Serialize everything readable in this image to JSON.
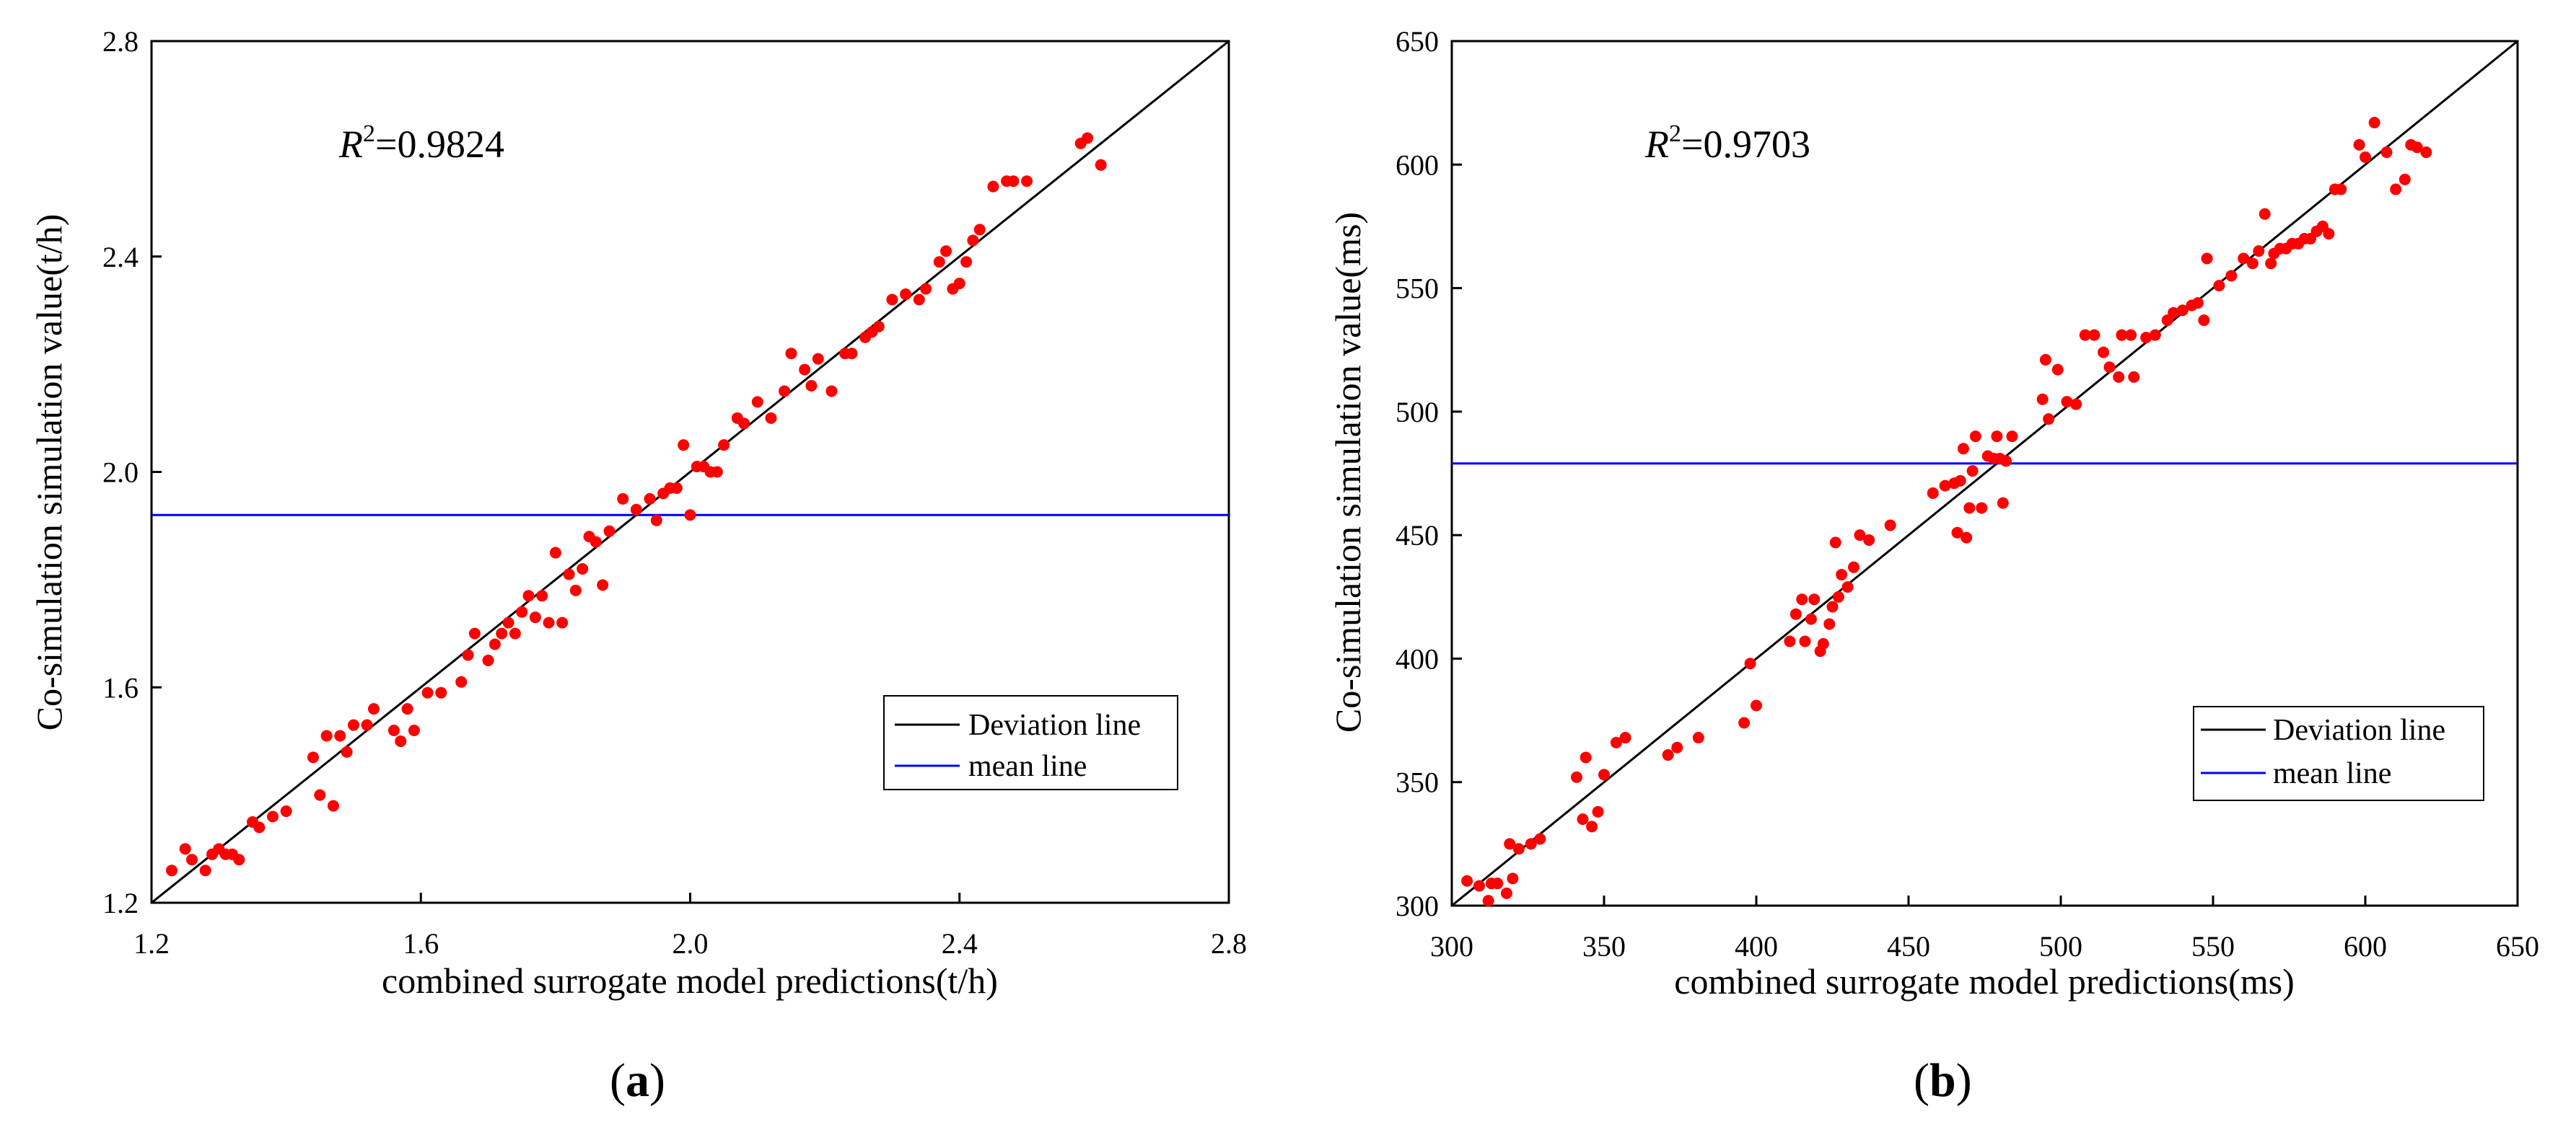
{
  "chart_data": [
    {
      "type": "scatter",
      "panel_label": "a",
      "xlabel": "combined surrogate model predictions(t/h)",
      "ylabel": "Co-simulation simulation value(t/h)",
      "xlim": [
        1.2,
        2.8
      ],
      "ylim": [
        1.2,
        2.8
      ],
      "xticks": [
        1.2,
        1.6,
        2.0,
        2.4,
        2.8
      ],
      "yticks": [
        1.2,
        1.6,
        2.0,
        2.4,
        2.8
      ],
      "tick_labels": [
        "1.2",
        "1.6",
        "2.0",
        "2.4",
        "2.8"
      ],
      "r2_prefix": "R",
      "r2_sup": "2",
      "r2_value": "=0.9824",
      "mean_line_y": 1.92,
      "deviation_line": [
        [
          1.2,
          1.2
        ],
        [
          2.8,
          2.8
        ]
      ],
      "legend": [
        "Deviation line",
        "mean line"
      ],
      "points": {
        "x": [
          1.23,
          1.25,
          1.26,
          1.28,
          1.29,
          1.3,
          1.31,
          1.32,
          1.33,
          1.35,
          1.36,
          1.38,
          1.4,
          1.44,
          1.45,
          1.46,
          1.47,
          1.48,
          1.49,
          1.5,
          1.52,
          1.53,
          1.56,
          1.57,
          1.58,
          1.59,
          1.61,
          1.63,
          1.66,
          1.67,
          1.68,
          1.7,
          1.71,
          1.72,
          1.73,
          1.74,
          1.75,
          1.76,
          1.77,
          1.78,
          1.79,
          1.8,
          1.81,
          1.82,
          1.83,
          1.84,
          1.85,
          1.86,
          1.87,
          1.88,
          1.9,
          1.92,
          1.94,
          1.95,
          1.96,
          1.97,
          1.98,
          1.99,
          2.0,
          2.01,
          2.02,
          2.03,
          2.04,
          2.05,
          2.07,
          2.08,
          2.1,
          2.12,
          2.14,
          2.15,
          2.17,
          2.18,
          2.19,
          2.21,
          2.23,
          2.24,
          2.26,
          2.27,
          2.28,
          2.3,
          2.32,
          2.34,
          2.35,
          2.37,
          2.38,
          2.39,
          2.4,
          2.41,
          2.42,
          2.43,
          2.45,
          2.47,
          2.48,
          2.5,
          2.58,
          2.59,
          2.61
        ],
        "y": [
          1.26,
          1.3,
          1.28,
          1.26,
          1.29,
          1.3,
          1.29,
          1.29,
          1.28,
          1.35,
          1.34,
          1.36,
          1.37,
          1.47,
          1.4,
          1.51,
          1.38,
          1.51,
          1.48,
          1.53,
          1.53,
          1.56,
          1.52,
          1.5,
          1.56,
          1.52,
          1.59,
          1.59,
          1.61,
          1.66,
          1.7,
          1.65,
          1.68,
          1.7,
          1.72,
          1.7,
          1.74,
          1.77,
          1.73,
          1.77,
          1.72,
          1.85,
          1.72,
          1.81,
          1.78,
          1.82,
          1.88,
          1.87,
          1.79,
          1.89,
          1.95,
          1.93,
          1.95,
          1.91,
          1.96,
          1.97,
          1.97,
          2.05,
          1.92,
          2.01,
          2.01,
          2.0,
          2.0,
          2.05,
          2.1,
          2.09,
          2.13,
          2.1,
          2.15,
          2.22,
          2.19,
          2.16,
          2.21,
          2.15,
          2.22,
          2.22,
          2.25,
          2.26,
          2.27,
          2.32,
          2.33,
          2.32,
          2.34,
          2.39,
          2.41,
          2.34,
          2.35,
          2.39,
          2.43,
          2.45,
          2.53,
          2.54,
          2.54,
          2.54,
          2.61,
          2.62,
          2.57
        ]
      }
    },
    {
      "type": "scatter",
      "panel_label": "b",
      "xlabel": "combined surrogate model predictions(ms)",
      "ylabel": "Co-simulation simulation value(ms)",
      "xlim": [
        300,
        650
      ],
      "ylim": [
        300,
        650
      ],
      "xticks": [
        300,
        350,
        400,
        450,
        500,
        550,
        600,
        650
      ],
      "yticks": [
        300,
        350,
        400,
        450,
        500,
        550,
        600,
        650
      ],
      "tick_labels": [
        "300",
        "350",
        "400",
        "450",
        "500",
        "550",
        "600",
        "650"
      ],
      "r2_prefix": "R",
      "r2_sup": "2",
      "r2_value": "=0.9703",
      "mean_line_y": 479,
      "deviation_line": [
        [
          300,
          300
        ],
        [
          650,
          650
        ]
      ],
      "legend": [
        "Deviation line",
        "mean line"
      ],
      "points": {
        "x": [
          305,
          309,
          312,
          313,
          315,
          318,
          319,
          320,
          322,
          326,
          329,
          341,
          343,
          344,
          346,
          348,
          350,
          354,
          357,
          371,
          374,
          381,
          396,
          398,
          400,
          411,
          413,
          415,
          416,
          418,
          419,
          421,
          422,
          424,
          425,
          426,
          427,
          428,
          430,
          432,
          434,
          437,
          444,
          458,
          462,
          465,
          466,
          467,
          468,
          469,
          470,
          471,
          472,
          474,
          476,
          478,
          479,
          480,
          481,
          482,
          484,
          494,
          495,
          496,
          499,
          502,
          505,
          508,
          511,
          514,
          516,
          519,
          520,
          523,
          524,
          528,
          531,
          535,
          537,
          540,
          543,
          545,
          547,
          548,
          552,
          556,
          560,
          563,
          565,
          567,
          569,
          570,
          572,
          574,
          576,
          578,
          580,
          582,
          584,
          586,
          588,
          590,
          592,
          598,
          600,
          603,
          607,
          610,
          613,
          615,
          617,
          620
        ],
        "y": [
          310,
          308,
          302,
          309,
          309,
          305,
          325,
          311,
          323,
          325,
          327,
          352,
          335,
          360,
          332,
          338,
          353,
          366,
          368,
          361,
          364,
          368,
          374,
          398,
          381,
          407,
          418,
          424,
          407,
          416,
          424,
          403,
          406,
          414,
          421,
          447,
          425,
          434,
          429,
          437,
          450,
          448,
          454,
          467,
          470,
          471,
          451,
          472,
          485,
          449,
          461,
          476,
          490,
          461,
          482,
          481,
          490,
          481,
          463,
          480,
          490,
          505,
          521,
          497,
          517,
          504,
          503,
          531,
          531,
          524,
          518,
          514,
          531,
          531,
          514,
          530,
          531,
          537,
          540,
          541,
          543,
          544,
          537,
          562,
          551,
          555,
          562,
          560,
          565,
          580,
          560,
          564,
          566,
          566,
          568,
          568,
          570,
          570,
          573,
          575,
          572,
          590,
          590,
          608,
          603,
          617,
          605,
          590,
          594,
          608,
          607,
          605
        ]
      }
    }
  ]
}
